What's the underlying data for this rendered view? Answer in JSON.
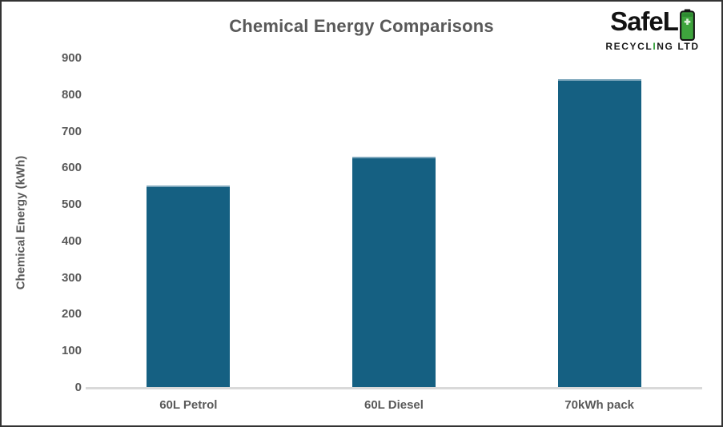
{
  "header": {
    "title": "Chemical Energy Comparisons"
  },
  "logo": {
    "wordmark": "SafeL",
    "battery_icon": "battery-icon",
    "tagline_pre": "RECYCL",
    "tagline_i": "I",
    "tagline_post": "NG LTD",
    "battery_green": "#3ea43d",
    "battery_outline": "#141414"
  },
  "chart_data": {
    "type": "bar",
    "title": "Chemical Energy Comparisons",
    "categories": [
      "60L Petrol",
      "60L Diesel",
      "70kWh pack"
    ],
    "values": [
      550,
      630,
      840
    ],
    "xlabel": "",
    "ylabel": "Chemical Energy (kWh)",
    "ylim": [
      0,
      900
    ],
    "ytick_step": 100,
    "grid": false,
    "legend": false,
    "bar_color": "#156082",
    "axis_line_color": "#d9d9d9",
    "label_color": "#595959"
  }
}
